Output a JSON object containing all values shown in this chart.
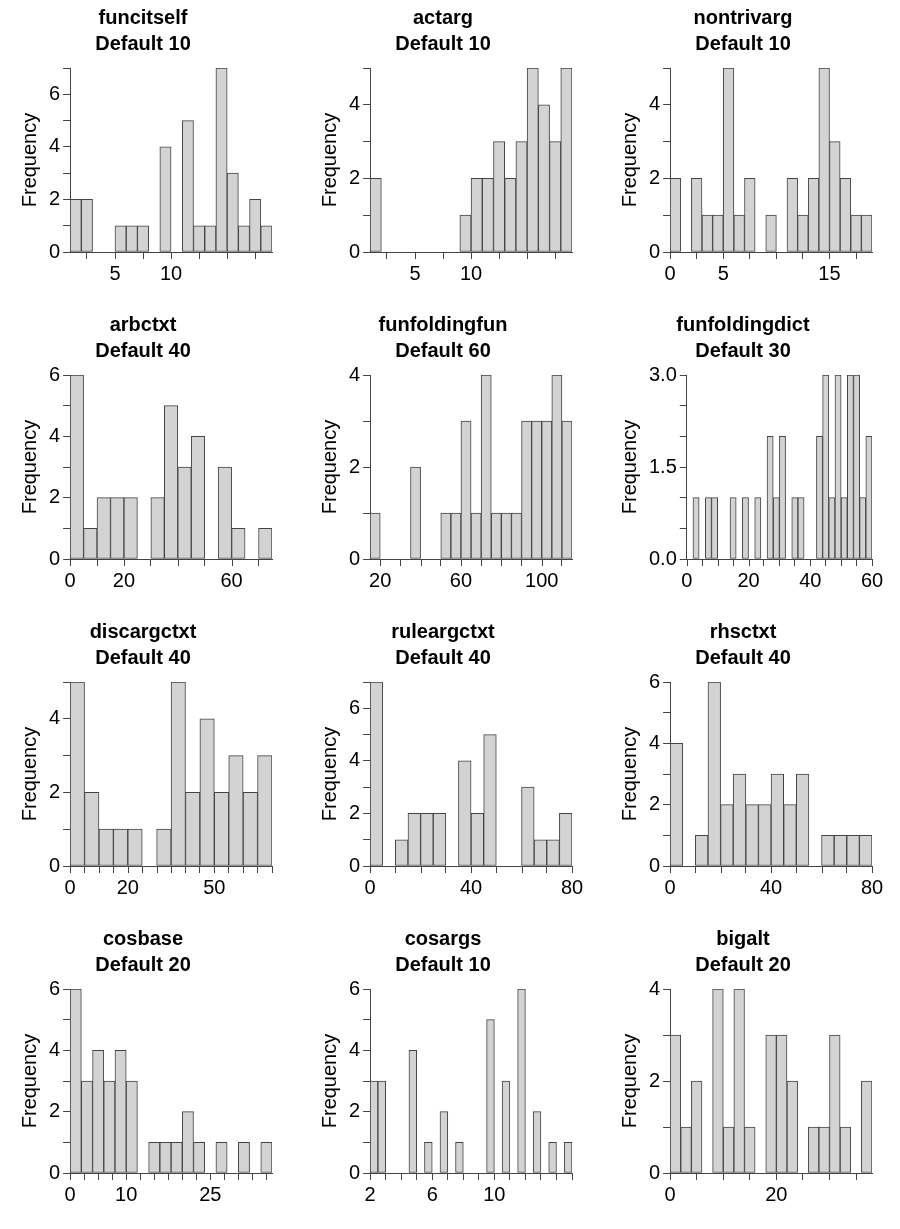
{
  "chart_data": [
    {
      "type": "histogram",
      "title": "funcitself",
      "subtitle": "Default 10",
      "ylabel": "Frequency",
      "color": "#d3d3d3",
      "bins": [
        1,
        2,
        3,
        4,
        5,
        6,
        7,
        8,
        9,
        10,
        11,
        12,
        13,
        14,
        15,
        16,
        17,
        18,
        19
      ],
      "values": [
        2,
        2,
        0,
        0,
        1,
        1,
        1,
        0,
        4,
        0,
        5,
        1,
        1,
        7,
        3,
        1,
        2,
        1
      ],
      "xlim": [
        1,
        19
      ],
      "xticks": [
        5,
        10,
        {
          "value": 15,
          "label": null
        }
      ],
      "ylim": [
        0,
        7
      ],
      "yticks": [
        0,
        {
          "value": 1,
          "label": null
        },
        2,
        {
          "value": 3,
          "label": null
        },
        4,
        {
          "value": 5,
          "label": null
        },
        6,
        {
          "value": 7,
          "label": null
        }
      ]
    },
    {
      "type": "histogram",
      "title": "actarg",
      "subtitle": "Default 10",
      "ylabel": "Frequency",
      "color": "#d3d3d3",
      "bins": [
        1,
        2,
        3,
        4,
        5,
        6,
        7,
        8,
        9,
        10,
        11,
        12,
        13,
        14,
        15,
        16,
        17,
        18,
        19
      ],
      "values": [
        2,
        0,
        0,
        0,
        0,
        0,
        0,
        0,
        1,
        2,
        2,
        3,
        2,
        3,
        5,
        4,
        3,
        5
      ],
      "xlim": [
        1,
        19
      ],
      "xticks": [
        5,
        10,
        {
          "value": 15,
          "label": null
        }
      ],
      "ylim": [
        0,
        5
      ],
      "yticks": [
        0,
        {
          "value": 1,
          "label": null
        },
        2,
        {
          "value": 3,
          "label": null
        },
        4,
        {
          "value": 5,
          "label": null
        }
      ]
    },
    {
      "type": "histogram",
      "title": "nontrivarg",
      "subtitle": "Default 10",
      "ylabel": "Frequency",
      "color": "#d3d3d3",
      "bins": [
        0,
        1,
        2,
        3,
        4,
        5,
        6,
        7,
        8,
        9,
        10,
        11,
        12,
        13,
        14,
        15,
        16,
        17,
        18,
        19
      ],
      "values": [
        2,
        0,
        2,
        1,
        1,
        5,
        1,
        2,
        0,
        1,
        0,
        2,
        1,
        2,
        5,
        3,
        2,
        1,
        1
      ],
      "xlim": [
        0,
        19
      ],
      "xticks": [
        0,
        5,
        {
          "value": 10,
          "label": null
        },
        15
      ],
      "ylim": [
        0,
        5
      ],
      "yticks": [
        0,
        {
          "value": 1,
          "label": null
        },
        2,
        {
          "value": 3,
          "label": null
        },
        4,
        {
          "value": 5,
          "label": null
        }
      ]
    },
    {
      "type": "histogram",
      "title": "arbctxt",
      "subtitle": "Default 40",
      "ylabel": "Frequency",
      "color": "#d3d3d3",
      "bins": [
        0,
        5,
        10,
        15,
        20,
        25,
        30,
        35,
        40,
        45,
        50,
        55,
        60,
        65,
        70,
        75
      ],
      "values": [
        6,
        1,
        2,
        2,
        2,
        0,
        2,
        5,
        3,
        4,
        0,
        3,
        1,
        0,
        1
      ],
      "xlim": [
        0,
        75
      ],
      "xticks": [
        0,
        20,
        {
          "value": 40,
          "label": null
        },
        60
      ],
      "ylim": [
        0,
        6
      ],
      "yticks": [
        0,
        {
          "value": 1,
          "label": null
        },
        2,
        {
          "value": 3,
          "label": null
        },
        4,
        {
          "value": 5,
          "label": null
        },
        6
      ]
    },
    {
      "type": "histogram",
      "title": "funfoldingfun",
      "subtitle": "Default 60",
      "ylabel": "Frequency",
      "color": "#d3d3d3",
      "bins": [
        15,
        20,
        25,
        30,
        35,
        40,
        45,
        50,
        55,
        60,
        65,
        70,
        75,
        80,
        85,
        90,
        95,
        100,
        105,
        110,
        115
      ],
      "values": [
        1,
        0,
        0,
        0,
        2,
        0,
        0,
        1,
        1,
        3,
        1,
        4,
        1,
        1,
        1,
        3,
        3,
        3,
        4,
        3
      ],
      "xlim": [
        15,
        115
      ],
      "xticks": [
        20,
        {
          "value": 40,
          "label": null
        },
        60,
        {
          "value": 80,
          "label": null
        },
        100
      ],
      "ylim": [
        0,
        4
      ],
      "yticks": [
        0,
        {
          "value": 1,
          "label": null
        },
        2,
        {
          "value": 3,
          "label": null
        },
        4
      ]
    },
    {
      "type": "histogram",
      "title": "funfoldingdict",
      "subtitle": "Default 30",
      "ylabel": "Frequency",
      "color": "#d3d3d3",
      "bins": [
        0,
        2,
        4,
        6,
        8,
        10,
        12,
        14,
        16,
        18,
        20,
        22,
        24,
        26,
        28,
        30,
        32,
        34,
        36,
        38,
        40,
        42,
        44,
        46,
        48,
        50,
        52,
        54,
        56,
        58,
        60
      ],
      "values": [
        0,
        1,
        0,
        1,
        1,
        0,
        0,
        1,
        0,
        1,
        0,
        1,
        0,
        2,
        1,
        2,
        0,
        1,
        1,
        0,
        0,
        2,
        3,
        1,
        3,
        1,
        3,
        3,
        1,
        2
      ],
      "xlim": [
        0,
        60
      ],
      "xticks": [
        0,
        {
          "value": 10,
          "label": null
        },
        20,
        {
          "value": 30,
          "label": null
        },
        40,
        {
          "value": 50,
          "label": null
        },
        60
      ],
      "ylim": [
        0,
        3
      ],
      "yticks": [
        {
          "value": 0,
          "label": "0.0"
        },
        {
          "value": 0.5,
          "label": null
        },
        {
          "value": 1,
          "label": null
        },
        1.5,
        {
          "value": 2,
          "label": null
        },
        {
          "value": 2.5,
          "label": null
        },
        {
          "value": 3,
          "label": "3.0"
        }
      ]
    },
    {
      "type": "histogram",
      "title": "discargctxt",
      "subtitle": "Default 40",
      "ylabel": "Frequency",
      "color": "#d3d3d3",
      "bins": [
        0,
        5,
        10,
        15,
        20,
        25,
        30,
        35,
        40,
        45,
        50,
        55,
        60,
        65,
        70
      ],
      "values": [
        5,
        2,
        1,
        1,
        1,
        0,
        1,
        5,
        2,
        4,
        2,
        3,
        2,
        3
      ],
      "xlim": [
        0,
        70
      ],
      "xticks": [
        0,
        {
          "value": 10,
          "label": null
        },
        20,
        {
          "value": 30,
          "label": null
        },
        {
          "value": 40,
          "label": null
        },
        50,
        {
          "value": 60,
          "label": null
        },
        {
          "value": 70,
          "label": null
        }
      ],
      "ylim": [
        0,
        5
      ],
      "yticks": [
        0,
        {
          "value": 1,
          "label": null
        },
        2,
        {
          "value": 3,
          "label": null
        },
        4,
        {
          "value": 5,
          "label": null
        }
      ]
    },
    {
      "type": "histogram",
      "title": "ruleargctxt",
      "subtitle": "Default 40",
      "ylabel": "Frequency",
      "color": "#d3d3d3",
      "bins": [
        0,
        5,
        10,
        15,
        20,
        25,
        30,
        35,
        40,
        45,
        50,
        55,
        60,
        65,
        70,
        75,
        80
      ],
      "values": [
        7,
        0,
        1,
        2,
        2,
        2,
        0,
        4,
        2,
        5,
        0,
        0,
        3,
        1,
        1,
        2
      ],
      "xlim": [
        0,
        80
      ],
      "xticks": [
        0,
        {
          "value": 20,
          "label": null
        },
        40,
        {
          "value": 60,
          "label": null
        },
        80
      ],
      "ylim": [
        0,
        7
      ],
      "yticks": [
        0,
        {
          "value": 1,
          "label": null
        },
        2,
        {
          "value": 3,
          "label": null
        },
        4,
        {
          "value": 5,
          "label": null
        },
        6,
        {
          "value": 7,
          "label": null
        }
      ]
    },
    {
      "type": "histogram",
      "title": "rhsctxt",
      "subtitle": "Default 40",
      "ylabel": "Frequency",
      "color": "#d3d3d3",
      "bins": [
        0,
        5,
        10,
        15,
        20,
        25,
        30,
        35,
        40,
        45,
        50,
        55,
        60,
        65,
        70,
        75,
        80
      ],
      "values": [
        4,
        0,
        1,
        6,
        2,
        3,
        2,
        2,
        3,
        2,
        3,
        0,
        1,
        1,
        1,
        1
      ],
      "xlim": [
        0,
        80
      ],
      "xticks": [
        0,
        {
          "value": 20,
          "label": null
        },
        40,
        {
          "value": 60,
          "label": null
        },
        80
      ],
      "ylim": [
        0,
        6
      ],
      "yticks": [
        0,
        {
          "value": 1,
          "label": null
        },
        2,
        {
          "value": 3,
          "label": null
        },
        4,
        {
          "value": 5,
          "label": null
        },
        6
      ]
    },
    {
      "type": "histogram",
      "title": "cosbase",
      "subtitle": "Default 20",
      "ylabel": "Frequency",
      "color": "#d3d3d3",
      "bins": [
        0,
        2,
        4,
        6,
        8,
        10,
        12,
        14,
        16,
        18,
        20,
        22,
        24,
        26,
        28,
        30,
        32,
        34,
        36
      ],
      "values": [
        6,
        3,
        4,
        3,
        4,
        3,
        0,
        1,
        1,
        1,
        2,
        1,
        0,
        1,
        0,
        1,
        0,
        1
      ],
      "xlim": [
        0,
        36
      ],
      "xticks": [
        0,
        {
          "value": 5,
          "label": null
        },
        10,
        {
          "value": 15,
          "label": null
        },
        {
          "value": 20,
          "label": null
        },
        25,
        {
          "value": 30,
          "label": null
        },
        {
          "value": 35,
          "label": null
        }
      ],
      "ylim": [
        0,
        6
      ],
      "yticks": [
        0,
        {
          "value": 1,
          "label": null
        },
        2,
        {
          "value": 3,
          "label": null
        },
        4,
        {
          "value": 5,
          "label": null
        },
        6
      ]
    },
    {
      "type": "histogram",
      "title": "cosargs",
      "subtitle": "Default 10",
      "ylabel": "Frequency",
      "color": "#d3d3d3",
      "bins": [
        2,
        2.5,
        3,
        3.5,
        4,
        4.5,
        5,
        5.5,
        6,
        6.5,
        7,
        7.5,
        8,
        8.5,
        9,
        9.5,
        10,
        10.5,
        11,
        11.5,
        12,
        12.5,
        13,
        13.5,
        14,
        14.5,
        15
      ],
      "values": [
        3,
        3,
        0,
        0,
        0,
        4,
        0,
        1,
        0,
        2,
        0,
        1,
        0,
        0,
        0,
        5,
        0,
        3,
        0,
        6,
        0,
        2,
        0,
        1,
        0,
        1
      ],
      "xlim": [
        2,
        15
      ],
      "xticks": [
        2,
        {
          "value": 4,
          "label": null
        },
        6,
        {
          "value": 8,
          "label": null
        },
        10,
        {
          "value": 12,
          "label": null
        },
        {
          "value": 14,
          "label": null
        }
      ],
      "ylim": [
        0,
        6
      ],
      "yticks": [
        0,
        {
          "value": 1,
          "label": null
        },
        2,
        {
          "value": 3,
          "label": null
        },
        4,
        {
          "value": 5,
          "label": null
        },
        6
      ]
    },
    {
      "type": "histogram",
      "title": "bigalt",
      "subtitle": "Default 20",
      "ylabel": "Frequency",
      "color": "#d3d3d3",
      "bins": [
        0,
        2,
        4,
        6,
        8,
        10,
        12,
        14,
        16,
        18,
        20,
        22,
        24,
        26,
        28,
        30,
        32,
        34,
        36,
        38
      ],
      "values": [
        3,
        1,
        2,
        0,
        4,
        1,
        4,
        1,
        0,
        3,
        3,
        2,
        0,
        1,
        1,
        3,
        1,
        0,
        2
      ],
      "xlim": [
        0,
        38
      ],
      "xticks": [
        0,
        {
          "value": 10,
          "label": null
        },
        20,
        {
          "value": 30,
          "label": null
        }
      ],
      "ylim": [
        0,
        4
      ],
      "yticks": [
        0,
        {
          "value": 1,
          "label": null
        },
        2,
        {
          "value": 3,
          "label": null
        },
        4
      ]
    }
  ]
}
